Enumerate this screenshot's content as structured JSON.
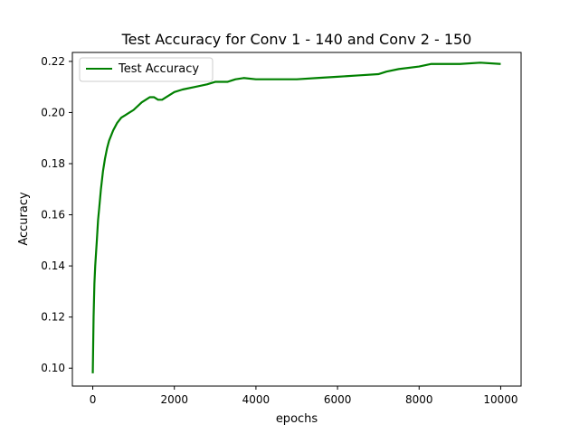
{
  "chart_data": {
    "type": "line",
    "title": "Test Accuracy for Conv 1 - 140 and Conv 2 - 150",
    "xlabel": "epochs",
    "ylabel": "Accuracy",
    "xlim": [
      -500,
      10500
    ],
    "ylim": [
      0.093,
      0.2235
    ],
    "xticks": [
      0,
      2000,
      4000,
      6000,
      8000,
      10000
    ],
    "xtick_labels": [
      "0",
      "2000",
      "4000",
      "6000",
      "8000",
      "10000"
    ],
    "yticks": [
      0.1,
      0.12,
      0.14,
      0.16,
      0.18,
      0.2,
      0.22
    ],
    "ytick_labels": [
      "0.10",
      "0.12",
      "0.14",
      "0.16",
      "0.18",
      "0.20",
      "0.22"
    ],
    "grid": false,
    "legend_position": "upper-left",
    "series": [
      {
        "name": "Test Accuracy",
        "color": "#008000",
        "x": [
          0,
          20,
          40,
          60,
          80,
          100,
          130,
          160,
          200,
          250,
          300,
          350,
          400,
          500,
          600,
          700,
          800,
          900,
          1000,
          1200,
          1400,
          1500,
          1600,
          1700,
          1800,
          2000,
          2200,
          2500,
          2800,
          3000,
          3300,
          3500,
          3700,
          4000,
          4500,
          5000,
          5500,
          6000,
          6500,
          7000,
          7200,
          7500,
          8000,
          8300,
          8500,
          9000,
          9500,
          10000
        ],
        "y": [
          0.098,
          0.12,
          0.133,
          0.14,
          0.145,
          0.15,
          0.158,
          0.163,
          0.17,
          0.177,
          0.182,
          0.186,
          0.189,
          0.193,
          0.196,
          0.198,
          0.199,
          0.2,
          0.201,
          0.204,
          0.206,
          0.206,
          0.205,
          0.205,
          0.206,
          0.208,
          0.209,
          0.21,
          0.211,
          0.212,
          0.212,
          0.213,
          0.2135,
          0.213,
          0.213,
          0.213,
          0.2135,
          0.214,
          0.2145,
          0.215,
          0.216,
          0.217,
          0.218,
          0.219,
          0.219,
          0.219,
          0.2195,
          0.219
        ]
      }
    ]
  }
}
